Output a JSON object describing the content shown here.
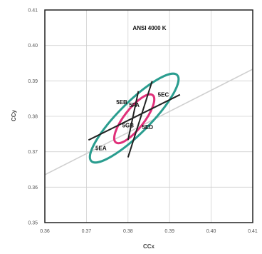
{
  "chart_data": {
    "type": "line",
    "title": "ANSI 4000 K",
    "xlabel": "CCx",
    "ylabel": "CCy",
    "xlim": [
      0.36,
      0.41
    ],
    "ylim": [
      0.35,
      0.41
    ],
    "x_ticks": [
      "0.36",
      "0.37",
      "0.38",
      "0.39",
      "0.40",
      "0.41"
    ],
    "y_ticks": [
      "0.35",
      "0.36",
      "0.37",
      "0.38",
      "0.39",
      "0.40",
      "0.41"
    ],
    "grid": true,
    "colors": {
      "outer_ellipse": "#2a9d8f",
      "inner_ellipse": "#e0307a",
      "planckian_locus": "#cfcfcf",
      "bin_lines": "#222222",
      "frame": "#222222",
      "grid": "#d0d0d0"
    },
    "planckian_locus": {
      "x": [
        0.36,
        0.41
      ],
      "y": [
        0.3635,
        0.3933
      ]
    },
    "bin_lines": [
      {
        "x": [
          0.3705,
          0.3925
        ],
        "y": [
          0.3733,
          0.3861
        ]
      },
      {
        "x": [
          0.3858,
          0.38
        ],
        "y": [
          0.3899,
          0.3684
        ]
      },
      {
        "x": [
          0.3825,
          0.38
        ],
        "y": [
          0.3871,
          0.3733
        ]
      }
    ],
    "outer_ellipse": {
      "center": [
        0.3815,
        0.3795
      ],
      "a": 0.0146,
      "b": 0.0044,
      "angle_deg": 45
    },
    "inner_ellipse": {
      "center": [
        0.3815,
        0.3793
      ],
      "a": 0.0072,
      "b": 0.0028,
      "angle_deg": 52
    },
    "bins": [
      {
        "label": "5EC",
        "x": 0.3885,
        "y": 0.3861
      },
      {
        "label": "5EB",
        "x": 0.3785,
        "y": 0.384
      },
      {
        "label": "5EA",
        "x": 0.3735,
        "y": 0.371
      },
      {
        "label": "5FA",
        "x": 0.3815,
        "y": 0.3832
      },
      {
        "label": "5GB",
        "x": 0.38,
        "y": 0.3775
      },
      {
        "label": "5ED",
        "x": 0.3847,
        "y": 0.377
      }
    ]
  }
}
